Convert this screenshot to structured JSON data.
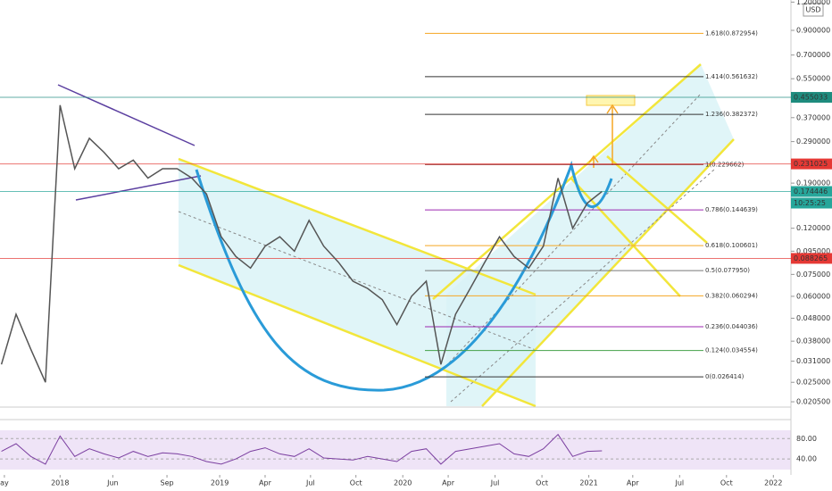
{
  "chart_data": {
    "type": "line",
    "log_scale": true,
    "x": [
      -4,
      -3,
      -2,
      -1,
      0,
      1,
      2,
      3,
      4,
      5,
      6,
      7,
      8,
      9,
      10,
      11,
      12,
      13,
      14,
      15,
      16,
      17,
      18,
      19,
      20,
      21,
      22,
      23,
      24,
      25,
      26,
      27,
      28,
      29,
      30,
      31,
      32,
      33,
      34,
      35,
      36,
      37
    ],
    "series": [
      {
        "name": "price",
        "color": "#555555",
        "values": [
          0.03,
          0.05,
          0.035,
          0.025,
          0.42,
          0.22,
          0.3,
          0.26,
          0.22,
          0.24,
          0.2,
          0.22,
          0.22,
          0.2,
          0.17,
          0.11,
          0.09,
          0.08,
          0.1,
          0.11,
          0.095,
          0.13,
          0.1,
          0.085,
          0.07,
          0.065,
          0.058,
          0.045,
          0.06,
          0.07,
          0.03,
          0.05,
          0.065,
          0.085,
          0.11,
          0.09,
          0.08,
          0.1,
          0.2,
          0.12,
          0.155,
          0.174446
        ]
      }
    ],
    "xlim": [
      -4.1,
      49.9
    ],
    "xticks": [
      {
        "value": -3.8,
        "label": "ay"
      },
      {
        "value": 0,
        "label": "2018"
      },
      {
        "value": 3.6,
        "label": "Jun"
      },
      {
        "value": 7.3,
        "label": "Sep"
      },
      {
        "value": 10.9,
        "label": "2019"
      },
      {
        "value": 14,
        "label": "Apr"
      },
      {
        "value": 17.1,
        "label": "Jul"
      },
      {
        "value": 20.2,
        "label": "Oct"
      },
      {
        "value": 23.4,
        "label": "2020"
      },
      {
        "value": 26.5,
        "label": "Apr"
      },
      {
        "value": 29.7,
        "label": "Jul"
      },
      {
        "value": 32.9,
        "label": "Oct"
      },
      {
        "value": 36.1,
        "label": "2021"
      },
      {
        "value": 39.1,
        "label": "Apr"
      },
      {
        "value": 42.3,
        "label": "Jul"
      },
      {
        "value": 45.5,
        "label": "Oct"
      },
      {
        "value": 48.7,
        "label": "2022"
      }
    ],
    "ylim": [
      0.0196,
      1.226
    ],
    "yticks": [
      {
        "value": 1.2,
        "label": "1.200000"
      },
      {
        "value": 0.9,
        "label": "0.900000"
      },
      {
        "value": 0.7,
        "label": "0.700000"
      },
      {
        "value": 0.55,
        "label": "0.550000"
      },
      {
        "value": 0.37,
        "label": "0.370000"
      },
      {
        "value": 0.29,
        "label": "0.290000"
      },
      {
        "value": 0.19,
        "label": "0.190000"
      },
      {
        "value": 0.12,
        "label": "0.120000"
      },
      {
        "value": 0.095,
        "label": "0.095000"
      },
      {
        "value": 0.075,
        "label": "0.075000"
      },
      {
        "value": 0.06,
        "label": "0.060000"
      },
      {
        "value": 0.048,
        "label": "0.048000"
      },
      {
        "value": 0.038,
        "label": "0.038000"
      },
      {
        "value": 0.031,
        "label": "0.031000"
      },
      {
        "value": 0.025,
        "label": "0.025000"
      },
      {
        "value": 0.0205,
        "label": "0.020500"
      }
    ],
    "currency": "USD",
    "price_tags": [
      {
        "value": 0.455033,
        "color": "#1e8c7e"
      },
      {
        "value": 0.231025,
        "color": "#e53935"
      },
      {
        "value": 0.174446,
        "color": "#26a69a"
      },
      {
        "value": 0.088265,
        "color": "#e53935"
      }
    ],
    "countdown": "10:25:25",
    "fib_levels": [
      {
        "value": 0.872954,
        "label": "1.618(0.872954)",
        "color": "#f5a623"
      },
      {
        "value": 0.561632,
        "label": "1.414(0.561632)",
        "color": "#333333"
      },
      {
        "value": 0.382372,
        "label": "1.236(0.382372)",
        "color": "#333333"
      },
      {
        "value": 0.229662,
        "label": "1(0.229662)",
        "color": "#8b1a1a"
      },
      {
        "value": 0.144639,
        "label": "0.786(0.144639)",
        "color": "#9c27b0"
      },
      {
        "value": 0.100601,
        "label": "0.618(0.100601)",
        "color": "#f5a623"
      },
      {
        "value": 0.07795,
        "label": "0.5(0.077950)",
        "color": "#777777"
      },
      {
        "value": 0.060294,
        "label": "0.382(0.060294)",
        "color": "#f5a623"
      },
      {
        "value": 0.044036,
        "label": "0.236(0.044036)",
        "color": "#9c27b0"
      },
      {
        "value": 0.034554,
        "label": "0.124(0.034554)",
        "color": "#43a047"
      },
      {
        "value": 0.026414,
        "label": "0(0.026414)",
        "color": "#333333"
      }
    ],
    "rsi": {
      "color": "#7b3fa0",
      "ylim": [
        0,
        105
      ],
      "yticks": [
        {
          "value": 80,
          "label": "80.00"
        },
        {
          "value": 40,
          "label": "40.00"
        }
      ],
      "values": [
        55,
        70,
        45,
        30,
        85,
        45,
        60,
        50,
        42,
        55,
        45,
        52,
        50,
        45,
        35,
        30,
        40,
        55,
        62,
        50,
        45,
        60,
        42,
        40,
        38,
        45,
        40,
        35,
        55,
        60,
        30,
        55,
        60,
        65,
        70,
        50,
        45,
        60,
        88,
        45,
        55,
        56
      ]
    }
  }
}
